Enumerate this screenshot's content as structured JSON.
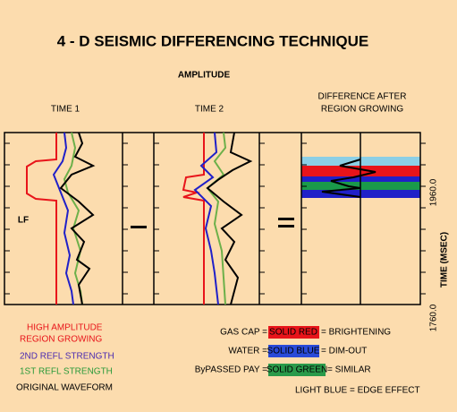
{
  "title": "4 - D SEISMIC DIFFERENCING TECHNIQUE",
  "subtitle": "AMPLITUDE",
  "panels": {
    "time1": "TIME 1",
    "time2": "TIME 2",
    "difference": [
      "DIFFERENCE AFTER",
      "REGION GROWING"
    ]
  },
  "lf": "LF",
  "axis": {
    "label": "TIME (MSEC)",
    "ticks": [
      "1960.0",
      "1760.0"
    ]
  },
  "legend_left": [
    "HIGH AMPLITUDE",
    "REGION GROWING",
    "2ND REFL STRENGTH",
    "1ST REFL STRENGTH",
    "ORIGINAL WAVEFORM"
  ],
  "legend_right": [
    {
      "left": "GAS CAP =",
      "box": "SOLID RED",
      "right": "= BRIGHTENING"
    },
    {
      "left": "WATER =",
      "box": "SOLID BLUE",
      "right": "= DIM-OUT"
    },
    {
      "left": "ByPASSED PAY =",
      "box": "SOLID GREEN",
      "right": "= SIMILAR"
    },
    {
      "text": "LIGHT BLUE = EDGE EFFECT"
    }
  ]
}
